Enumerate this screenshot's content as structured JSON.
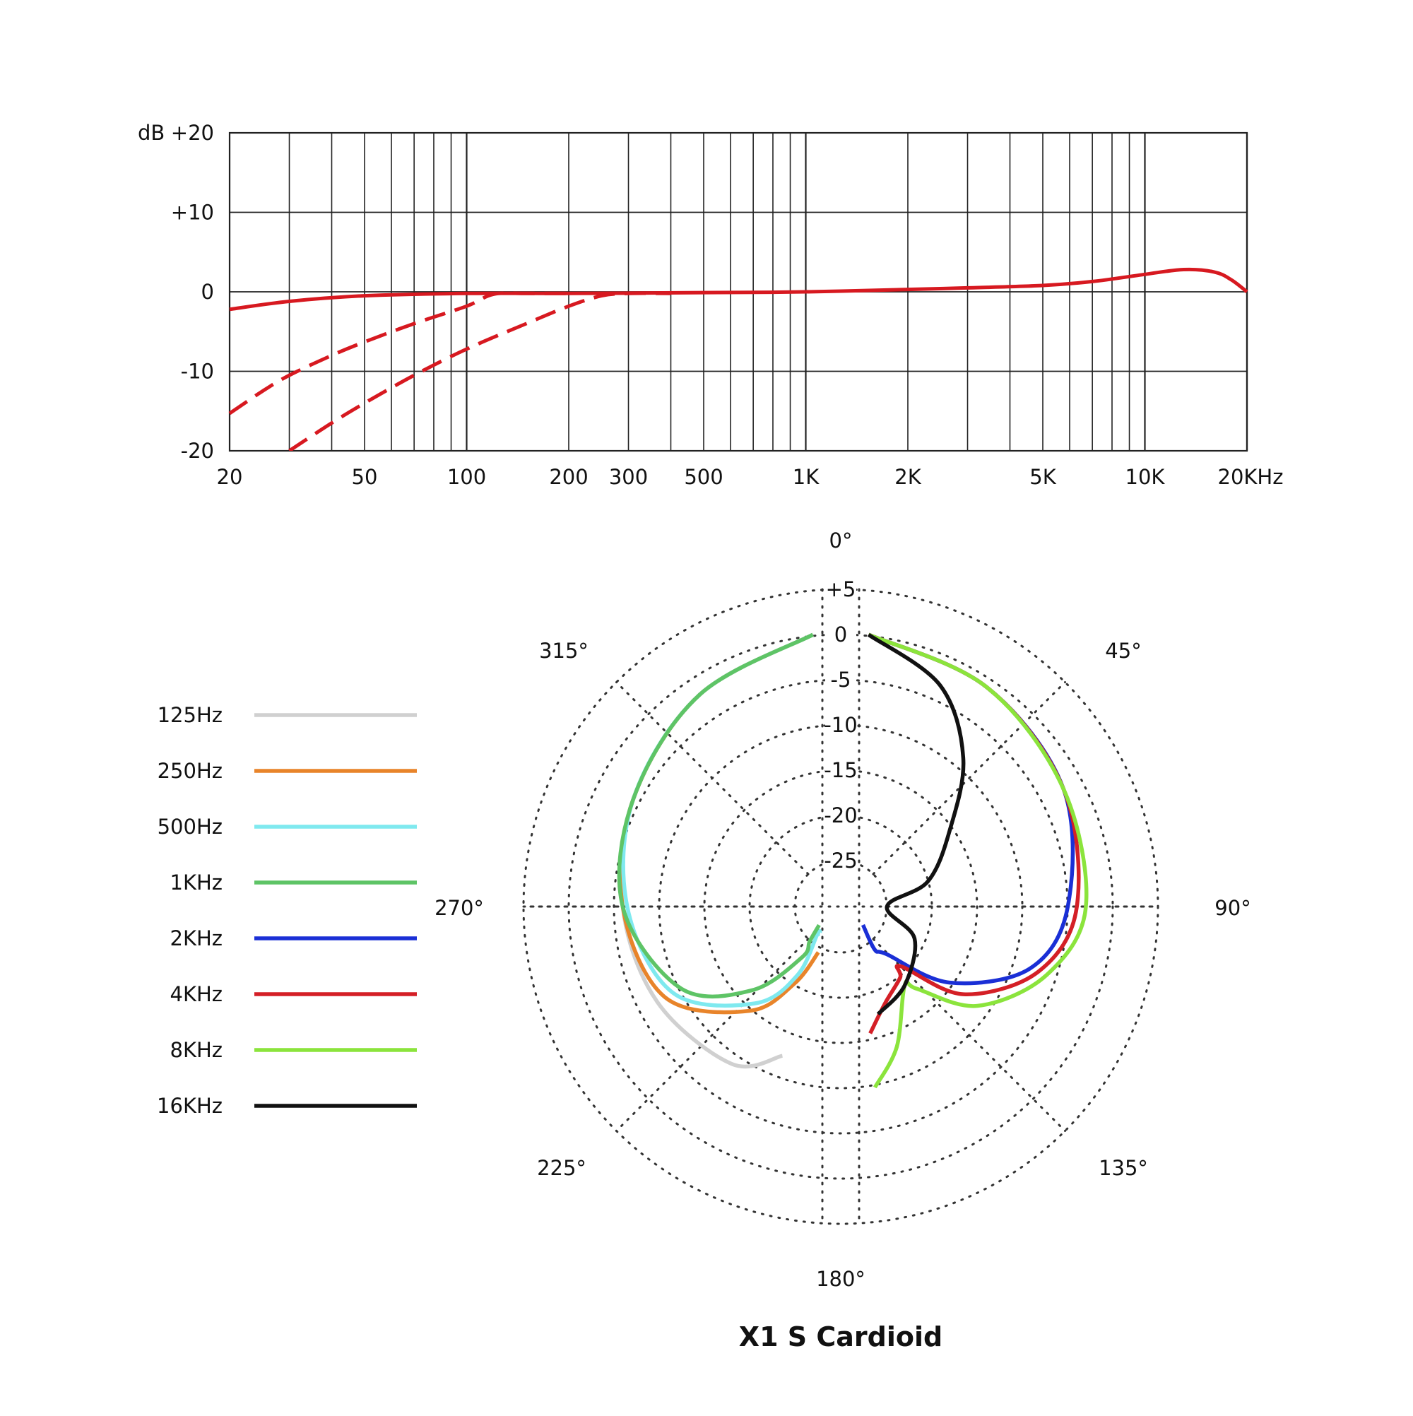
{
  "chart_data": [
    {
      "type": "line",
      "title": "",
      "xscale": "log",
      "xlim": [
        20,
        20000
      ],
      "ylim": [
        -20,
        20
      ],
      "unit_label": "dB",
      "y_ticks": [
        {
          "value": 20,
          "label": "+20"
        },
        {
          "value": 10,
          "label": "+10"
        },
        {
          "value": 0,
          "label": "0"
        },
        {
          "value": -10,
          "label": "-10"
        },
        {
          "value": -20,
          "label": "-20"
        }
      ],
      "x_ticks": [
        {
          "value": 20,
          "label": "20"
        },
        {
          "value": 50,
          "label": "50"
        },
        {
          "value": 100,
          "label": "100"
        },
        {
          "value": 200,
          "label": "200"
        },
        {
          "value": 300,
          "label": "300"
        },
        {
          "value": 500,
          "label": "500"
        },
        {
          "value": 1000,
          "label": "1K"
        },
        {
          "value": 2000,
          "label": "2K"
        },
        {
          "value": 5000,
          "label": "5K"
        },
        {
          "value": 10000,
          "label": "10K"
        },
        {
          "value": 20000,
          "label": "20KHz"
        }
      ],
      "grid": true,
      "color": "#d71920",
      "series": [
        {
          "style": "solid",
          "points": [
            [
              20,
              -2.2
            ],
            [
              30,
              -1.2
            ],
            [
              50,
              -0.5
            ],
            [
              100,
              -0.2
            ],
            [
              200,
              -0.2
            ],
            [
              500,
              -0.1
            ],
            [
              1000,
              0
            ],
            [
              2000,
              0.3
            ],
            [
              3000,
              0.5
            ],
            [
              5000,
              0.8
            ],
            [
              7000,
              1.3
            ],
            [
              10000,
              2.2
            ],
            [
              13000,
              2.8
            ],
            [
              16000,
              2.5
            ],
            [
              18000,
              1.5
            ],
            [
              20000,
              0
            ]
          ]
        },
        {
          "style": "dashed",
          "points": [
            [
              20,
              -15.3
            ],
            [
              25,
              -12.5
            ],
            [
              30,
              -10.5
            ],
            [
              40,
              -8
            ],
            [
              50,
              -6.3
            ],
            [
              70,
              -4
            ],
            [
              100,
              -1.8
            ],
            [
              120,
              -0.3
            ],
            [
              150,
              -0.2
            ],
            [
              200,
              -0.2
            ]
          ]
        },
        {
          "style": "dashed",
          "points": [
            [
              30,
              -20
            ],
            [
              40,
              -16.5
            ],
            [
              50,
              -14
            ],
            [
              70,
              -10.5
            ],
            [
              100,
              -7.2
            ],
            [
              150,
              -4
            ],
            [
              200,
              -1.8
            ],
            [
              250,
              -0.5
            ],
            [
              300,
              -0.2
            ],
            [
              400,
              -0.2
            ]
          ]
        }
      ]
    },
    {
      "type": "polar",
      "title": "X1 S  Cardioid",
      "rlim": [
        -30,
        5
      ],
      "grid": true,
      "angle_ticks": [
        {
          "deg": 0,
          "label": "0°"
        },
        {
          "deg": 45,
          "label": "45°"
        },
        {
          "deg": 90,
          "label": "90°"
        },
        {
          "deg": 135,
          "label": "135°"
        },
        {
          "deg": 180,
          "label": "180°"
        },
        {
          "deg": 225,
          "label": "225°"
        },
        {
          "deg": 270,
          "label": "270°"
        },
        {
          "deg": 315,
          "label": "315°"
        }
      ],
      "r_ticks": [
        {
          "value": 5,
          "label": "+5"
        },
        {
          "value": 0,
          "label": "0"
        },
        {
          "value": -5,
          "label": "-5"
        },
        {
          "value": -10,
          "label": "-10"
        },
        {
          "value": -15,
          "label": "-15"
        },
        {
          "value": -20,
          "label": "-20"
        },
        {
          "value": -25,
          "label": "-25"
        }
      ],
      "legend_position": "left",
      "series": [
        {
          "name": "125Hz",
          "color": "#d0d0d0",
          "side": "left",
          "points": [
            [
              -2,
              0
            ],
            [
              -30,
              -3
            ],
            [
              -60,
              -6
            ],
            [
              -90,
              -8
            ],
            [
              -120,
              -9
            ],
            [
              -150,
              -10
            ],
            [
              -165,
              -13
            ]
          ]
        },
        {
          "name": "250Hz",
          "color": "#e8842a",
          "side": "left",
          "points": [
            [
              -2,
              0
            ],
            [
              -30,
              -3
            ],
            [
              -60,
              -6
            ],
            [
              -90,
              -8
            ],
            [
              -120,
              -10
            ],
            [
              -145,
              -16
            ],
            [
              -160,
              -21
            ],
            [
              -175,
              -25
            ]
          ]
        },
        {
          "name": "500Hz",
          "color": "#7fe9ef",
          "side": "left",
          "points": [
            [
              -2,
              0
            ],
            [
              -30,
              -3
            ],
            [
              -60,
              -6
            ],
            [
              -90,
              -8.5
            ],
            [
              -120,
              -11
            ],
            [
              -145,
              -17
            ],
            [
              -160,
              -22
            ],
            [
              -170,
              -27
            ],
            [
              -175,
              -27
            ]
          ]
        },
        {
          "name": "1KHz",
          "color": "#5ec466",
          "side": "left",
          "points": [
            [
              -2,
              0
            ],
            [
              -30,
              -3
            ],
            [
              -60,
              -6
            ],
            [
              -90,
              -8
            ],
            [
              -120,
              -12
            ],
            [
              -140,
              -18
            ],
            [
              -158,
              -24
            ],
            [
              -160,
              -26
            ],
            [
              -170,
              -28
            ]
          ]
        },
        {
          "name": "2KHz",
          "color": "#1a2fd6",
          "side": "right",
          "points": [
            [
              2,
              0
            ],
            [
              30,
              -2
            ],
            [
              60,
              -4
            ],
            [
              90,
              -7
            ],
            [
              110,
              -10
            ],
            [
              130,
              -17
            ],
            [
              150,
              -24
            ],
            [
              160,
              -25
            ],
            [
              168,
              -28
            ]
          ]
        },
        {
          "name": "4KHz",
          "color": "#d41f26",
          "side": "right",
          "points": [
            [
              2,
              0
            ],
            [
              30,
              -2
            ],
            [
              60,
              -4
            ],
            [
              90,
              -6
            ],
            [
              110,
              -9
            ],
            [
              130,
              -15
            ],
            [
              145,
              -22
            ],
            [
              150,
              -21
            ],
            [
              165,
              -19
            ],
            [
              175,
              -16
            ]
          ]
        },
        {
          "name": "8KHz",
          "color": "#8be43c",
          "side": "right",
          "points": [
            [
              2,
              0
            ],
            [
              30,
              -2
            ],
            [
              60,
              -4
            ],
            [
              90,
              -5
            ],
            [
              110,
              -8
            ],
            [
              130,
              -13
            ],
            [
              145,
              -19
            ],
            [
              150,
              -20
            ],
            [
              165,
              -14
            ],
            [
              175,
              -10
            ]
          ]
        },
        {
          "name": "16KHz",
          "color": "#111111",
          "side": "right",
          "points": [
            [
              2,
              0
            ],
            [
              20,
              -4
            ],
            [
              35,
              -10
            ],
            [
              50,
              -17
            ],
            [
              70,
              -22
            ],
            [
              90,
              -27
            ],
            [
              120,
              -23
            ],
            [
              150,
              -20
            ],
            [
              170,
              -18
            ]
          ]
        }
      ]
    }
  ]
}
